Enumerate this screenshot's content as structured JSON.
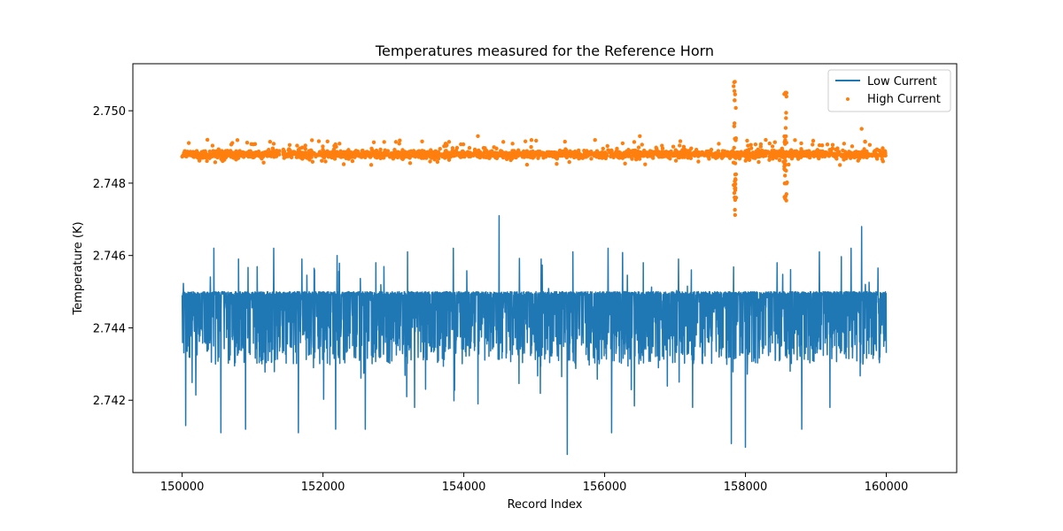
{
  "chart_data": {
    "type": "line",
    "title": "Temperatures measured for the Reference Horn",
    "xlabel": "Record Index",
    "ylabel": "Temperature (K)",
    "xlim": [
      149300,
      161000
    ],
    "ylim": [
      2.74,
      2.7513
    ],
    "xticks": [
      150000,
      152000,
      154000,
      156000,
      158000,
      160000
    ],
    "xtick_labels": [
      "150000",
      "152000",
      "154000",
      "156000",
      "158000",
      "160000"
    ],
    "yticks": [
      2.742,
      2.744,
      2.746,
      2.748,
      2.75
    ],
    "ytick_labels": [
      "2.742",
      "2.744",
      "2.746",
      "2.748",
      "2.750"
    ],
    "grid": false,
    "legend_position": "top-right",
    "series": [
      {
        "name": "Low Current",
        "kind": "line",
        "color": "#1f77b4",
        "x_range": [
          150000,
          160000
        ],
        "typical_band": [
          2.743,
          2.745
        ],
        "baseline_mean": 2.7441,
        "spikes": [
          {
            "x": 150450,
            "y": 2.7462
          },
          {
            "x": 150800,
            "y": 2.7459
          },
          {
            "x": 151300,
            "y": 2.7462
          },
          {
            "x": 151700,
            "y": 2.7459
          },
          {
            "x": 152200,
            "y": 2.746
          },
          {
            "x": 152750,
            "y": 2.7458
          },
          {
            "x": 153200,
            "y": 2.7461
          },
          {
            "x": 153850,
            "y": 2.7462
          },
          {
            "x": 154500,
            "y": 2.7471
          },
          {
            "x": 155100,
            "y": 2.7459
          },
          {
            "x": 155550,
            "y": 2.7461
          },
          {
            "x": 156050,
            "y": 2.7462
          },
          {
            "x": 156550,
            "y": 2.7458
          },
          {
            "x": 157050,
            "y": 2.7459
          },
          {
            "x": 157800,
            "y": 2.746
          },
          {
            "x": 158450,
            "y": 2.7458
          },
          {
            "x": 159050,
            "y": 2.7461
          },
          {
            "x": 159500,
            "y": 2.7462
          },
          {
            "x": 159650,
            "y": 2.7468
          }
        ],
        "dips": [
          {
            "x": 150050,
            "y": 2.7413
          },
          {
            "x": 150550,
            "y": 2.7411
          },
          {
            "x": 150900,
            "y": 2.7412
          },
          {
            "x": 151650,
            "y": 2.7411
          },
          {
            "x": 152180,
            "y": 2.7412
          },
          {
            "x": 152600,
            "y": 2.7412
          },
          {
            "x": 153300,
            "y": 2.7418
          },
          {
            "x": 154200,
            "y": 2.7419
          },
          {
            "x": 155470,
            "y": 2.7405
          },
          {
            "x": 156100,
            "y": 2.7411
          },
          {
            "x": 157250,
            "y": 2.7418
          },
          {
            "x": 157800,
            "y": 2.7408
          },
          {
            "x": 158000,
            "y": 2.7407
          },
          {
            "x": 158800,
            "y": 2.7412
          },
          {
            "x": 159200,
            "y": 2.7418
          }
        ]
      },
      {
        "name": "High Current",
        "kind": "scatter",
        "color": "#ff7f0e",
        "x_range": [
          150000,
          160000
        ],
        "typical_band": [
          2.7486,
          2.7491
        ],
        "baseline_mean": 2.7488,
        "outlier_columns": [
          {
            "x": 157850,
            "ymin": 2.7468,
            "ymax": 2.7508
          },
          {
            "x": 158570,
            "ymin": 2.7475,
            "ymax": 2.7505
          }
        ],
        "isolated_points": [
          {
            "x": 159650,
            "y": 2.7495
          },
          {
            "x": 156500,
            "y": 2.7493
          },
          {
            "x": 154200,
            "y": 2.7493
          }
        ]
      }
    ]
  }
}
